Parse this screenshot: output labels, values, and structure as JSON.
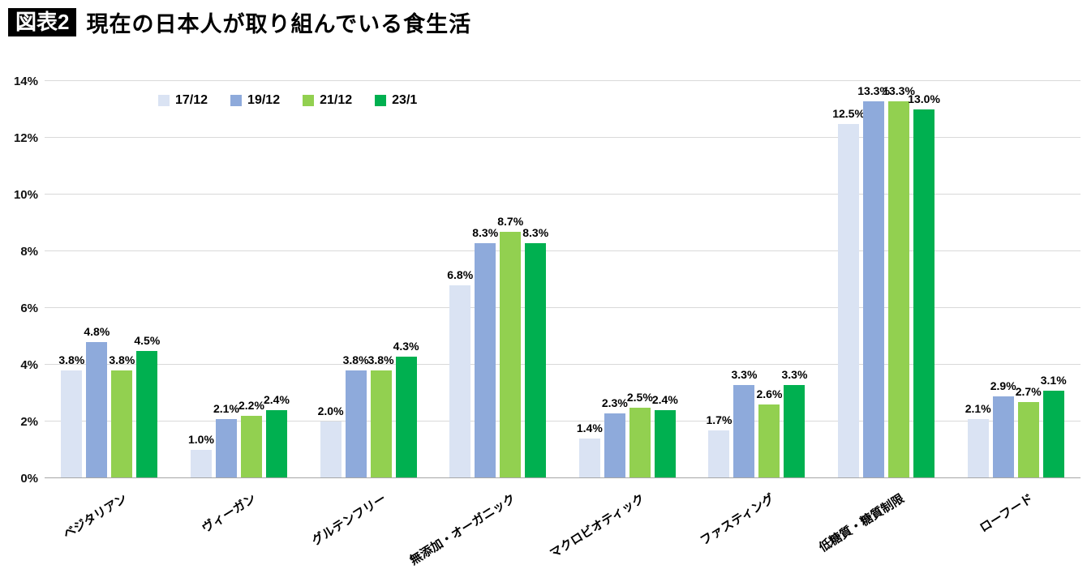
{
  "header": {
    "badge": "図表2",
    "title": "現在の日本人が取り組んでいる食生活"
  },
  "chart_data": {
    "type": "bar",
    "title": "現在の日本人が取り組んでいる食生活",
    "categories": [
      "ベジタリアン",
      "ヴィーガン",
      "グルテンフリー",
      "無添加・オーガニック",
      "マクロビオティック",
      "ファスティング",
      "低糖質・糖質制限",
      "ローフード"
    ],
    "series": [
      {
        "name": "17/12",
        "color": "#dae3f3",
        "values": [
          3.8,
          1.0,
          2.0,
          6.8,
          1.4,
          1.7,
          12.5,
          2.1
        ]
      },
      {
        "name": "19/12",
        "color": "#8eaadb",
        "values": [
          4.8,
          2.1,
          3.8,
          8.3,
          2.3,
          3.3,
          13.3,
          2.9
        ]
      },
      {
        "name": "21/12",
        "color": "#92d050",
        "values": [
          3.8,
          2.2,
          3.8,
          8.7,
          2.5,
          2.6,
          13.3,
          2.7
        ]
      },
      {
        "name": "23/1",
        "color": "#00b050",
        "values": [
          4.5,
          2.4,
          4.3,
          8.3,
          2.4,
          3.3,
          13.0,
          3.1
        ]
      }
    ],
    "xlabel": "",
    "ylabel": "",
    "ylim": [
      0,
      14
    ],
    "ytick_step": 2,
    "ytick_suffix": "%",
    "value_suffix": "%",
    "grid": true,
    "legend_position": "top-left-inside"
  }
}
